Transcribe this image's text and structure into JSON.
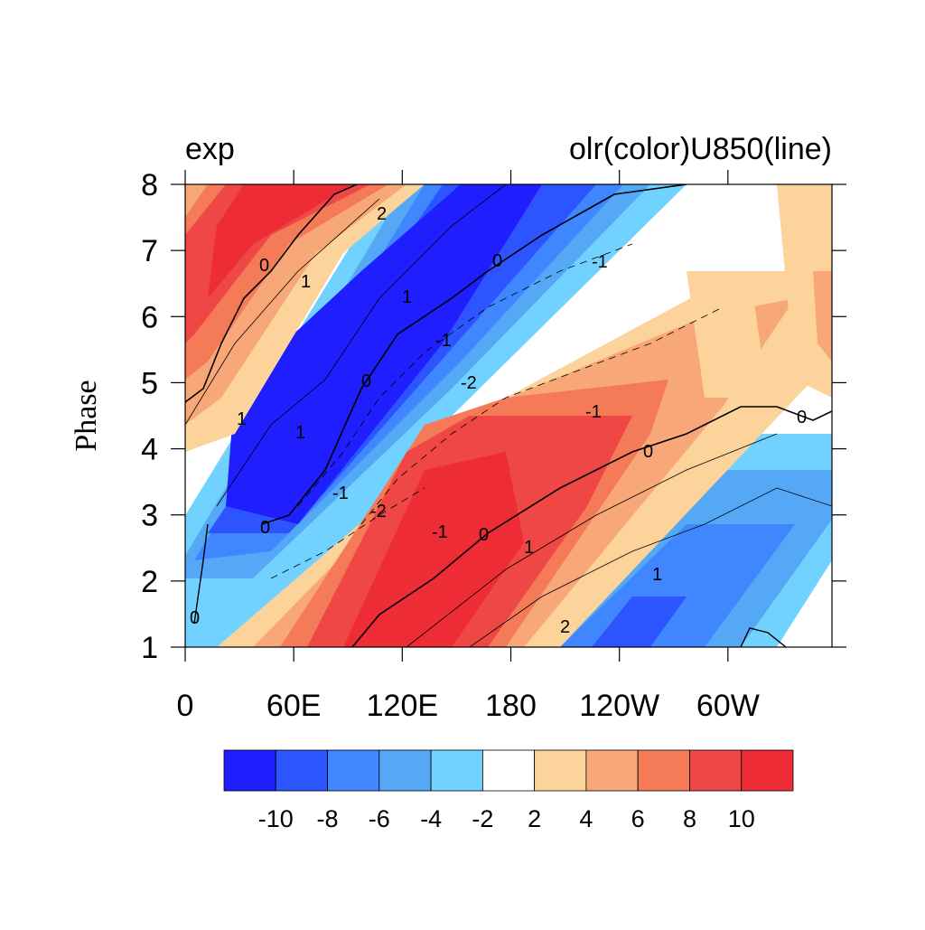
{
  "chart_data": {
    "type": "contour",
    "title_left": "exp",
    "title_right": "olr(color)U850(line)",
    "y_label": "Phase",
    "xlim": [
      0,
      357.5
    ],
    "ylim": [
      1,
      8
    ],
    "xticks": [
      0,
      {
        "value": 60,
        "label": "60E"
      },
      {
        "value": 120,
        "label": "120E"
      },
      180,
      {
        "value": 240,
        "label": "120W"
      },
      {
        "value": 300,
        "label": "60W"
      }
    ],
    "yticks": [
      1,
      2,
      3,
      4,
      5,
      6,
      7,
      8
    ],
    "contour_levels": [
      -2,
      -1,
      0,
      1,
      2
    ],
    "colorbar": {
      "levels": [
        -10,
        -8,
        -6,
        -4,
        -2,
        2,
        4,
        6,
        8,
        10
      ],
      "colors": [
        "#1e1eff",
        "#2d55ff",
        "#3f86ff",
        "#55a8f5",
        "#72d2ff",
        "#ffffff",
        "#fbd39b",
        "#f8a878",
        "#f47a58",
        "#ef4646",
        "#ee2c36"
      ]
    }
  }
}
